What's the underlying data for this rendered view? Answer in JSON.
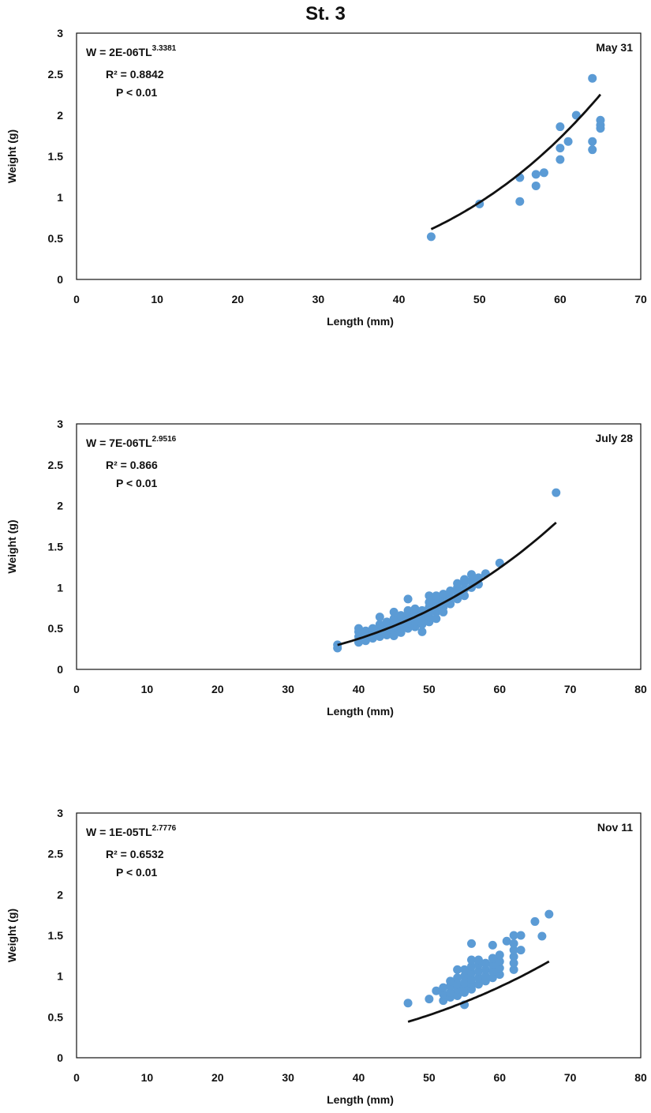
{
  "page_title": "St. 3",
  "colors": {
    "points": "#5b9bd5",
    "fit_line": "#111111",
    "frame": "#111111"
  },
  "chart_data": [
    {
      "type": "scatter",
      "panel_label": "May 31",
      "xlabel": "Length (mm)",
      "ylabel": "Weight (g)",
      "xlim": [
        0,
        70
      ],
      "ylim": [
        0,
        3
      ],
      "xticks": [
        0,
        10,
        20,
        30,
        40,
        50,
        60,
        70
      ],
      "yticks": [
        0,
        0.5,
        1,
        1.5,
        2,
        2.5,
        3
      ],
      "equation": {
        "prefix": "W = 2E-06TL",
        "exponent": "3.3381",
        "r2": "R² = 0.8842",
        "p": "P < 0.01"
      },
      "fit": {
        "a": 2e-06,
        "b": 3.3381,
        "x_range": [
          44,
          65
        ]
      },
      "points": [
        [
          44,
          0.52
        ],
        [
          50,
          0.92
        ],
        [
          55,
          0.95
        ],
        [
          55,
          1.24
        ],
        [
          57,
          1.14
        ],
        [
          57,
          1.28
        ],
        [
          58,
          1.3
        ],
        [
          60,
          1.46
        ],
        [
          60,
          1.6
        ],
        [
          60,
          1.86
        ],
        [
          61,
          1.68
        ],
        [
          62,
          2.0
        ],
        [
          64,
          2.45
        ],
        [
          64,
          1.68
        ],
        [
          64,
          1.58
        ],
        [
          65,
          1.84
        ],
        [
          65,
          1.88
        ],
        [
          65,
          1.94
        ]
      ]
    },
    {
      "type": "scatter",
      "panel_label": "July 28",
      "xlabel": "Length (mm)",
      "ylabel": "Weight (g)",
      "xlim": [
        0,
        80
      ],
      "ylim": [
        0,
        3
      ],
      "xticks": [
        0,
        10,
        20,
        30,
        40,
        50,
        60,
        70,
        80
      ],
      "yticks": [
        0,
        0.5,
        1,
        1.5,
        2,
        2.5,
        3
      ],
      "equation": {
        "prefix": "W = 7E-06TL",
        "exponent": "2.9516",
        "r2": "R² = 0.866",
        "p": "P < 0.01"
      },
      "fit": {
        "a": 7e-06,
        "b": 2.9516,
        "x_range": [
          37,
          68
        ]
      },
      "points": [
        [
          37,
          0.26
        ],
        [
          37,
          0.3
        ],
        [
          40,
          0.33
        ],
        [
          40,
          0.4
        ],
        [
          40,
          0.46
        ],
        [
          40,
          0.5
        ],
        [
          41,
          0.35
        ],
        [
          41,
          0.42
        ],
        [
          41,
          0.47
        ],
        [
          42,
          0.38
        ],
        [
          42,
          0.44
        ],
        [
          42,
          0.5
        ],
        [
          43,
          0.4
        ],
        [
          43,
          0.46
        ],
        [
          43,
          0.52
        ],
        [
          43,
          0.55
        ],
        [
          43,
          0.64
        ],
        [
          44,
          0.42
        ],
        [
          44,
          0.48
        ],
        [
          44,
          0.53
        ],
        [
          44,
          0.58
        ],
        [
          45,
          0.41
        ],
        [
          45,
          0.47
        ],
        [
          45,
          0.52
        ],
        [
          45,
          0.57
        ],
        [
          45,
          0.62
        ],
        [
          45,
          0.7
        ],
        [
          46,
          0.45
        ],
        [
          46,
          0.5
        ],
        [
          46,
          0.55
        ],
        [
          46,
          0.6
        ],
        [
          46,
          0.66
        ],
        [
          47,
          0.5
        ],
        [
          47,
          0.56
        ],
        [
          47,
          0.62
        ],
        [
          47,
          0.68
        ],
        [
          47,
          0.72
        ],
        [
          47,
          0.86
        ],
        [
          48,
          0.52
        ],
        [
          48,
          0.58
        ],
        [
          48,
          0.64
        ],
        [
          48,
          0.7
        ],
        [
          48,
          0.74
        ],
        [
          49,
          0.46
        ],
        [
          49,
          0.55
        ],
        [
          49,
          0.6
        ],
        [
          49,
          0.66
        ],
        [
          49,
          0.72
        ],
        [
          50,
          0.58
        ],
        [
          50,
          0.64
        ],
        [
          50,
          0.7
        ],
        [
          50,
          0.76
        ],
        [
          50,
          0.82
        ],
        [
          50,
          0.9
        ],
        [
          51,
          0.62
        ],
        [
          51,
          0.7
        ],
        [
          51,
          0.78
        ],
        [
          51,
          0.86
        ],
        [
          51,
          0.9
        ],
        [
          52,
          0.7
        ],
        [
          52,
          0.76
        ],
        [
          52,
          0.82
        ],
        [
          52,
          0.88
        ],
        [
          52,
          0.92
        ],
        [
          53,
          0.8
        ],
        [
          53,
          0.88
        ],
        [
          53,
          0.96
        ],
        [
          54,
          0.86
        ],
        [
          54,
          0.94
        ],
        [
          54,
          1.0
        ],
        [
          54,
          1.05
        ],
        [
          55,
          0.9
        ],
        [
          55,
          0.98
        ],
        [
          55,
          1.06
        ],
        [
          55,
          1.1
        ],
        [
          56,
          1.0
        ],
        [
          56,
          1.08
        ],
        [
          56,
          1.16
        ],
        [
          57,
          1.04
        ],
        [
          57,
          1.12
        ],
        [
          58,
          1.17
        ],
        [
          60,
          1.3
        ],
        [
          68,
          2.16
        ]
      ]
    },
    {
      "type": "scatter",
      "panel_label": "Nov 11",
      "xlabel": "Length (mm)",
      "ylabel": "Weight (g)",
      "xlim": [
        0,
        80
      ],
      "ylim": [
        0,
        3
      ],
      "xticks": [
        0,
        10,
        20,
        30,
        40,
        50,
        60,
        70,
        80
      ],
      "yticks": [
        0,
        0.5,
        1,
        1.5,
        2,
        2.5,
        3
      ],
      "equation": {
        "prefix": "W = 1E-05TL",
        "exponent": "2.7776",
        "r2": "R² = 0.6532",
        "p": "P < 0.01"
      },
      "fit": {
        "a": 1e-05,
        "b": 2.7776,
        "x_range": [
          47,
          67
        ]
      },
      "points": [
        [
          47,
          0.67
        ],
        [
          50,
          0.72
        ],
        [
          51,
          0.82
        ],
        [
          52,
          0.7
        ],
        [
          52,
          0.78
        ],
        [
          52,
          0.86
        ],
        [
          53,
          0.74
        ],
        [
          53,
          0.8
        ],
        [
          53,
          0.88
        ],
        [
          53,
          0.94
        ],
        [
          54,
          0.76
        ],
        [
          54,
          0.84
        ],
        [
          54,
          0.9
        ],
        [
          54,
          0.98
        ],
        [
          54,
          1.08
        ],
        [
          55,
          0.65
        ],
        [
          55,
          0.8
        ],
        [
          55,
          0.86
        ],
        [
          55,
          0.92
        ],
        [
          55,
          1.0
        ],
        [
          55,
          1.08
        ],
        [
          56,
          0.84
        ],
        [
          56,
          0.9
        ],
        [
          56,
          0.96
        ],
        [
          56,
          1.04
        ],
        [
          56,
          1.12
        ],
        [
          56,
          1.2
        ],
        [
          56,
          1.4
        ],
        [
          57,
          0.9
        ],
        [
          57,
          0.98
        ],
        [
          57,
          1.06
        ],
        [
          57,
          1.14
        ],
        [
          57,
          1.2
        ],
        [
          58,
          0.94
        ],
        [
          58,
          1.0
        ],
        [
          58,
          1.08
        ],
        [
          58,
          1.16
        ],
        [
          59,
          0.98
        ],
        [
          59,
          1.06
        ],
        [
          59,
          1.14
        ],
        [
          59,
          1.22
        ],
        [
          59,
          1.38
        ],
        [
          60,
          1.02
        ],
        [
          60,
          1.1
        ],
        [
          60,
          1.18
        ],
        [
          60,
          1.26
        ],
        [
          61,
          1.43
        ],
        [
          62,
          1.08
        ],
        [
          62,
          1.16
        ],
        [
          62,
          1.24
        ],
        [
          62,
          1.32
        ],
        [
          62,
          1.4
        ],
        [
          62,
          1.5
        ],
        [
          63,
          1.32
        ],
        [
          63,
          1.5
        ],
        [
          65,
          1.67
        ],
        [
          66,
          1.49
        ],
        [
          67,
          1.76
        ]
      ]
    }
  ]
}
